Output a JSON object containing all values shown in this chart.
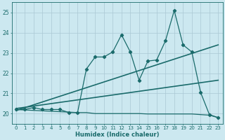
{
  "title": "",
  "xlabel": "Humidex (Indice chaleur)",
  "ylabel": "",
  "bg_color": "#cce8f0",
  "grid_color": "#aac8d4",
  "line_color": "#1a6b6b",
  "xlim": [
    -0.5,
    23.5
  ],
  "ylim": [
    19.5,
    25.5
  ],
  "yticks": [
    20,
    21,
    22,
    23,
    24,
    25
  ],
  "xticks": [
    0,
    1,
    2,
    3,
    4,
    5,
    6,
    7,
    8,
    9,
    10,
    11,
    12,
    13,
    14,
    15,
    16,
    17,
    18,
    19,
    20,
    21,
    22,
    23
  ],
  "series1_x": [
    0,
    1,
    2,
    3,
    4,
    5,
    6,
    7,
    8,
    9,
    10,
    11,
    12,
    13,
    14,
    15,
    16,
    17,
    18,
    19,
    20,
    21,
    22,
    23
  ],
  "series1_y": [
    20.2,
    20.2,
    20.3,
    20.2,
    20.2,
    20.2,
    20.05,
    20.05,
    22.2,
    22.8,
    22.8,
    23.05,
    23.9,
    23.05,
    21.65,
    22.6,
    22.65,
    23.6,
    25.1,
    23.4,
    23.05,
    21.05,
    19.95,
    19.8
  ],
  "series2_x": [
    0,
    23
  ],
  "series2_y": [
    20.15,
    23.4
  ],
  "series3_x": [
    0,
    23
  ],
  "series3_y": [
    20.25,
    21.65
  ],
  "series4_x": [
    0,
    7,
    8,
    9,
    10,
    11,
    12,
    13,
    14,
    15,
    16,
    17,
    18,
    19,
    20,
    21,
    22,
    23
  ],
  "series4_y": [
    20.2,
    20.05,
    20.05,
    20.0,
    20.0,
    20.0,
    20.0,
    20.0,
    20.0,
    19.98,
    19.98,
    19.98,
    19.98,
    19.98,
    19.98,
    19.95,
    19.92,
    19.8
  ]
}
